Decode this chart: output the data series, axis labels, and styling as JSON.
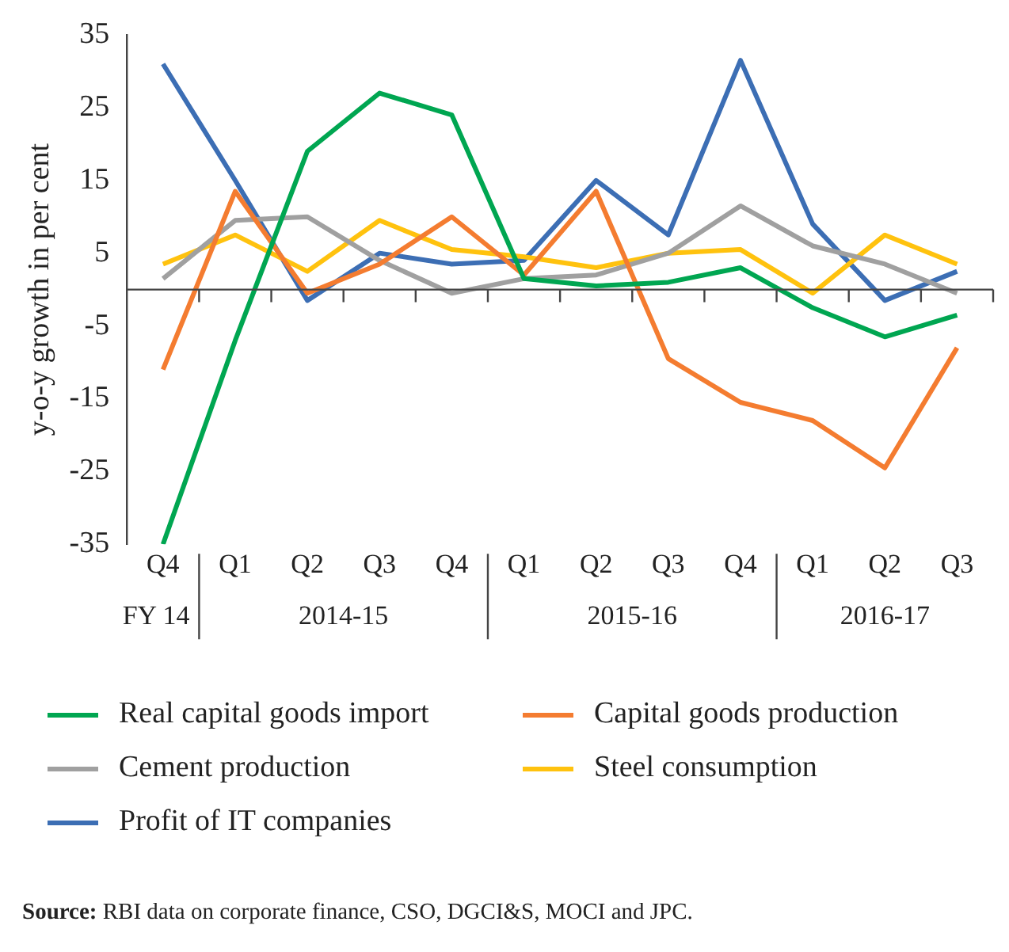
{
  "chart_data": {
    "type": "line",
    "ylabel": "y-o-y growth in per cent",
    "categories": [
      "Q4",
      "Q1",
      "Q2",
      "Q3",
      "Q4",
      "Q1",
      "Q2",
      "Q3",
      "Q4",
      "Q1",
      "Q2",
      "Q3"
    ],
    "series": [
      {
        "name": "Real capital goods import",
        "color": "#00a651",
        "values": [
          -35,
          -7,
          19,
          27,
          24,
          1.5,
          0.5,
          1,
          3,
          -2.5,
          -6.5,
          -3.5
        ]
      },
      {
        "name": "Capital goods production",
        "color": "#f47c30",
        "values": [
          -11,
          13.5,
          -0.5,
          3.5,
          10,
          2,
          13.5,
          -9.5,
          -15.5,
          -18,
          -24.5,
          -8
        ]
      },
      {
        "name": "Cement production",
        "color": "#a0a0a0",
        "values": [
          1.5,
          9.5,
          10,
          4,
          -0.5,
          1.5,
          2,
          5,
          11.5,
          6,
          3.5,
          -0.5
        ]
      },
      {
        "name": "Steel consumption",
        "color": "#ffc20e",
        "values": [
          3.5,
          7.5,
          2.5,
          9.5,
          5.5,
          4.5,
          3,
          5,
          5.5,
          -0.5,
          7.5,
          3.5
        ]
      },
      {
        "name": "Profit of IT companies",
        "color": "#3c6eb4",
        "values": [
          31,
          15,
          -1.5,
          5,
          3.5,
          4,
          15,
          7.5,
          31.5,
          9,
          -1.5,
          2.5
        ]
      }
    ],
    "ylim": [
      -35,
      35
    ],
    "yticks": [
      -35,
      -25,
      -15,
      -5,
      5,
      15,
      25,
      35
    ],
    "grid": false,
    "legend": "bottom",
    "marker": "none",
    "line_style": "solid",
    "annotations": [
      "FY 14",
      "2014-15",
      "2015-16",
      "2016-17",
      "Source: RBI data on corporate finance, CSO, DGCI&S, MOCI and JPC."
    ]
  }
}
